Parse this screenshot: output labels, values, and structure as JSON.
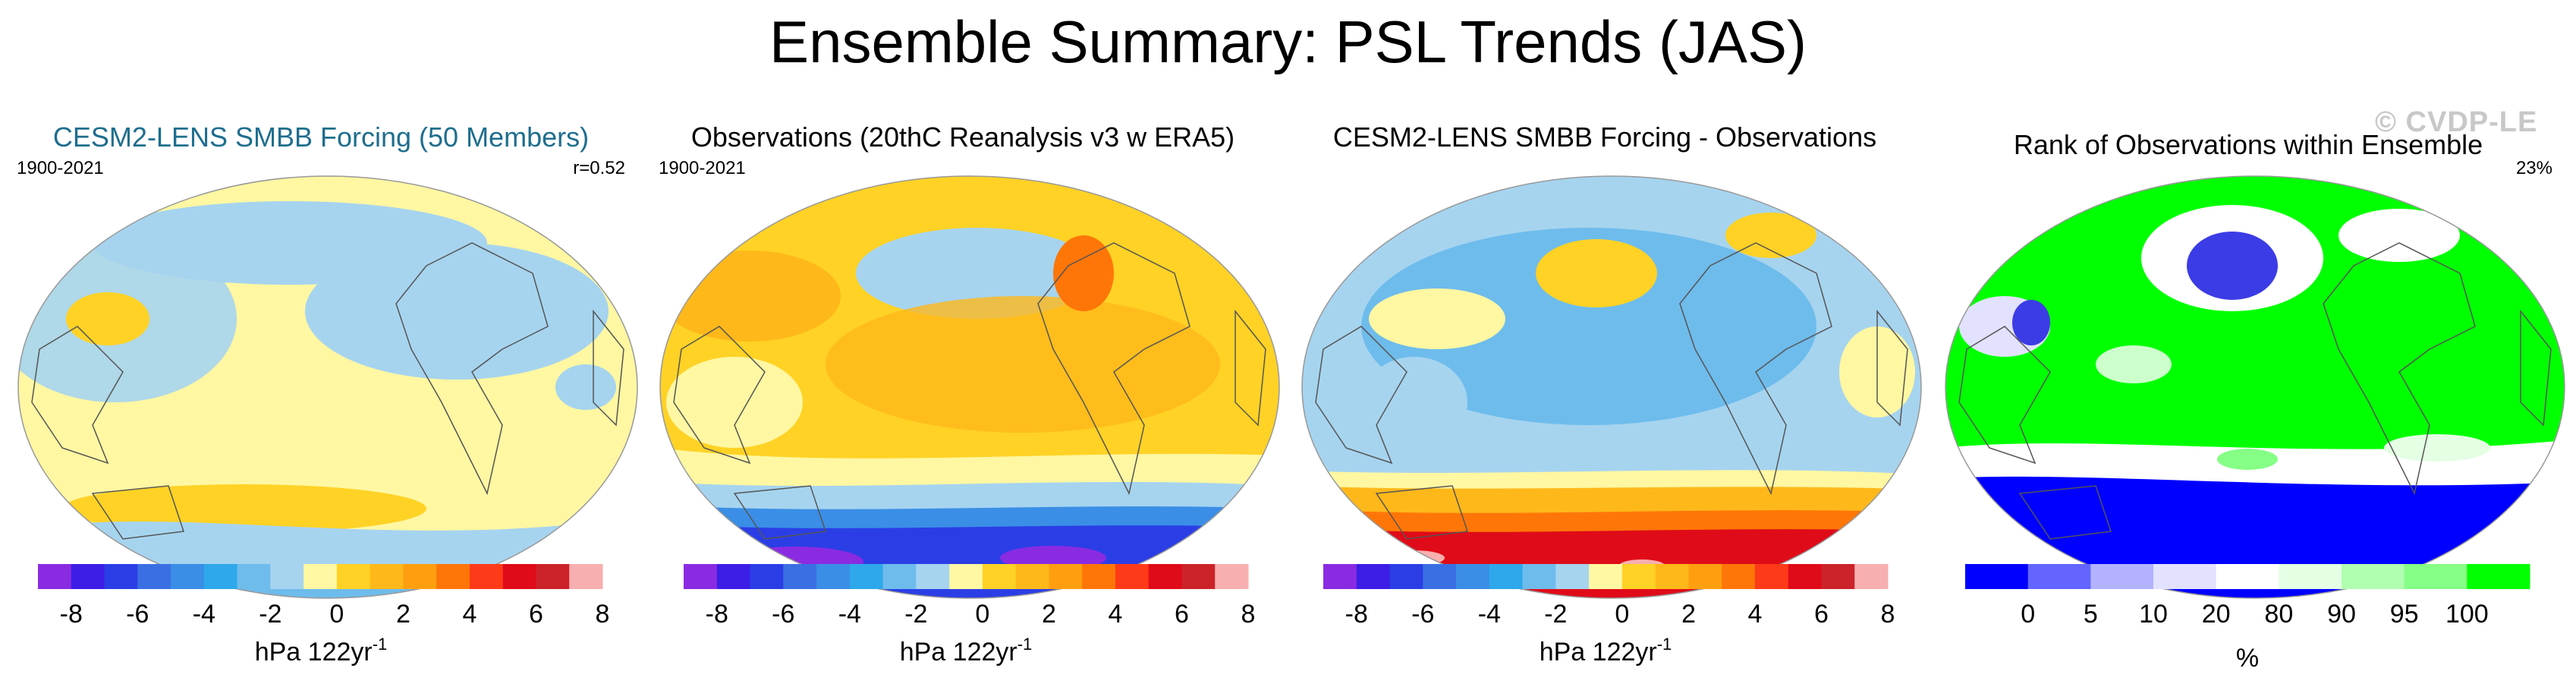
{
  "title": "Ensemble Summary: PSL Trends (JAS)",
  "watermark": "© CVDP-LE",
  "colors": {
    "div": [
      "#8a2be2",
      "#3c1ee6",
      "#2b3ee6",
      "#3a6fe3",
      "#3a8ee6",
      "#2ea8ea",
      "#6ebcec",
      "#a6d4ef",
      "#fff7a2",
      "#ffd225",
      "#ffb81a",
      "#ff9f10",
      "#ff7608",
      "#ff3a18",
      "#e00b18",
      "#cc222a",
      "#f8afaf"
    ],
    "rank": [
      "#0000ff",
      "#6464ff",
      "#b2b2ff",
      "#e2e2ff",
      "#ffffff",
      "#e4ffe4",
      "#b0ffb0",
      "#86ff86",
      "#00ff00"
    ]
  },
  "panels": [
    {
      "title": "CESM2-LENS SMBB Forcing (50 Members)",
      "period": "1900-2021",
      "corner": "r=0.52",
      "colorbar": {
        "ticks": [
          "-8",
          "-6",
          "-4",
          "-2",
          "0",
          "2",
          "4",
          "6",
          "8"
        ],
        "label": "hPa 122yr",
        "label_sup": "-1"
      }
    },
    {
      "title": "Observations (20thC Reanalysis v3 w ERA5)",
      "period": "1900-2021",
      "corner": "",
      "colorbar": {
        "ticks": [
          "-8",
          "-6",
          "-4",
          "-2",
          "0",
          "2",
          "4",
          "6",
          "8"
        ],
        "label": "hPa 122yr",
        "label_sup": "-1"
      }
    },
    {
      "title": "CESM2-LENS SMBB Forcing - Observations",
      "period": "",
      "corner": "",
      "colorbar": {
        "ticks": [
          "-8",
          "-6",
          "-4",
          "-2",
          "0",
          "2",
          "4",
          "6",
          "8"
        ],
        "label": "hPa 122yr",
        "label_sup": "-1"
      }
    },
    {
      "title": "Rank of Observations within Ensemble",
      "period": "",
      "corner": "23%",
      "colorbar": {
        "ticks": [
          "0",
          "5",
          "10",
          "20",
          "80",
          "90",
          "95",
          "100"
        ],
        "label": "%",
        "label_sup": ""
      }
    }
  ]
}
